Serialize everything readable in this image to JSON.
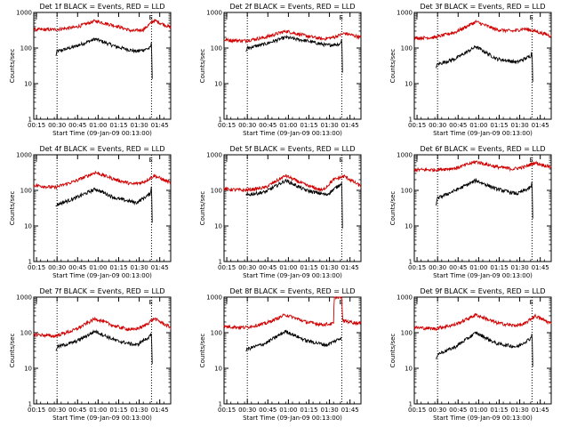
{
  "chart_data": [
    {
      "type": "line",
      "title": "Det 1f BLACK = Events, RED = LLD",
      "xlabel": "Start Time (09-Jan-09 00:13:00)",
      "ylabel": "Counts/sec",
      "y_scale": "log",
      "ylim": [
        1,
        1000
      ],
      "x_ticks": [
        "00:15",
        "00:30",
        "00:45",
        "01:00",
        "01:15",
        "01:30",
        "01:45"
      ],
      "y_ticks": [
        "1",
        "10",
        "100",
        "1000"
      ],
      "x_range_minutes": [
        0,
        100
      ],
      "markers": [
        {
          "label": "E",
          "x": 86
        }
      ],
      "dotted_lines_x": [
        17,
        86
      ],
      "series": [
        {
          "name": "Events",
          "color": "#000000",
          "points": [
            [
              16,
              60
            ],
            [
              17,
              80
            ],
            [
              30,
              110
            ],
            [
              45,
              180
            ],
            [
              60,
              110
            ],
            [
              75,
              80
            ],
            [
              85,
              100
            ],
            [
              86,
              140
            ],
            [
              86.5,
              15
            ]
          ]
        },
        {
          "name": "LLD",
          "color": "#d00000",
          "points": [
            [
              0,
              330
            ],
            [
              15,
              330
            ],
            [
              30,
              380
            ],
            [
              45,
              580
            ],
            [
              60,
              420
            ],
            [
              72,
              300
            ],
            [
              80,
              330
            ],
            [
              88,
              600
            ],
            [
              100,
              380
            ]
          ]
        }
      ]
    },
    {
      "type": "line",
      "title": "Det 2f BLACK = Events, RED = LLD",
      "xlabel": "Start Time (09-Jan-09 00:13:00)",
      "ylabel": "Counts/sec",
      "y_scale": "log",
      "ylim": [
        1,
        1000
      ],
      "x_ticks": [
        "00:15",
        "00:30",
        "00:45",
        "01:00",
        "01:15",
        "01:30",
        "01:45"
      ],
      "y_ticks": [
        "1",
        "10",
        "100",
        "1000"
      ],
      "x_range_minutes": [
        0,
        100
      ],
      "markers": [
        {
          "label": "E",
          "x": 86
        }
      ],
      "dotted_lines_x": [
        17,
        86
      ],
      "series": [
        {
          "name": "Events",
          "color": "#000000",
          "points": [
            [
              16,
              80
            ],
            [
              17,
              100
            ],
            [
              30,
              130
            ],
            [
              45,
              200
            ],
            [
              60,
              160
            ],
            [
              75,
              120
            ],
            [
              85,
              130
            ],
            [
              86,
              200
            ],
            [
              86.5,
              20
            ]
          ]
        },
        {
          "name": "LLD",
          "color": "#d00000",
          "points": [
            [
              0,
              170
            ],
            [
              15,
              160
            ],
            [
              30,
              200
            ],
            [
              45,
              300
            ],
            [
              60,
              220
            ],
            [
              72,
              180
            ],
            [
              80,
              200
            ],
            [
              88,
              260
            ],
            [
              100,
              200
            ]
          ]
        }
      ]
    },
    {
      "type": "line",
      "title": "Det 3f BLACK = Events, RED = LLD",
      "xlabel": "Start Time (09-Jan-09 00:13:00)",
      "ylabel": "Counts/sec",
      "y_scale": "log",
      "ylim": [
        1,
        1000
      ],
      "x_ticks": [
        "00:15",
        "00:30",
        "00:45",
        "01:00",
        "01:15",
        "01:30",
        "01:45"
      ],
      "y_ticks": [
        "1",
        "10",
        "100",
        "1000"
      ],
      "x_range_minutes": [
        0,
        100
      ],
      "markers": [
        {
          "label": "E",
          "x": 86
        }
      ],
      "dotted_lines_x": [
        17,
        86
      ],
      "series": [
        {
          "name": "Events",
          "color": "#000000",
          "points": [
            [
              16,
              30
            ],
            [
              17,
              35
            ],
            [
              30,
              50
            ],
            [
              45,
              110
            ],
            [
              60,
              50
            ],
            [
              75,
              40
            ],
            [
              85,
              60
            ],
            [
              86,
              80
            ],
            [
              86.5,
              12
            ]
          ]
        },
        {
          "name": "LLD",
          "color": "#d00000",
          "points": [
            [
              0,
              190
            ],
            [
              15,
              200
            ],
            [
              30,
              280
            ],
            [
              45,
              550
            ],
            [
              60,
              330
            ],
            [
              72,
              300
            ],
            [
              80,
              350
            ],
            [
              88,
              300
            ],
            [
              100,
              220
            ]
          ]
        }
      ]
    },
    {
      "type": "line",
      "title": "Det 4f BLACK = Events, RED = LLD",
      "xlabel": "Start Time (09-Jan-09 00:13:00)",
      "ylabel": "Counts/sec",
      "y_scale": "log",
      "ylim": [
        1,
        1000
      ],
      "x_ticks": [
        "00:15",
        "00:30",
        "00:45",
        "01:00",
        "01:15",
        "01:30",
        "01:45"
      ],
      "y_ticks": [
        "1",
        "10",
        "100",
        "1000"
      ],
      "x_range_minutes": [
        0,
        100
      ],
      "markers": [
        {
          "label": "E",
          "x": 86
        }
      ],
      "dotted_lines_x": [
        17,
        86
      ],
      "series": [
        {
          "name": "Events",
          "color": "#000000",
          "points": [
            [
              16,
              35
            ],
            [
              17,
              40
            ],
            [
              30,
              60
            ],
            [
              45,
              110
            ],
            [
              60,
              60
            ],
            [
              75,
              45
            ],
            [
              85,
              80
            ],
            [
              86,
              140
            ],
            [
              86.5,
              12
            ]
          ]
        },
        {
          "name": "LLD",
          "color": "#d00000",
          "points": [
            [
              0,
              140
            ],
            [
              15,
              120
            ],
            [
              30,
              180
            ],
            [
              45,
              320
            ],
            [
              60,
              200
            ],
            [
              72,
              150
            ],
            [
              80,
              170
            ],
            [
              88,
              260
            ],
            [
              100,
              160
            ]
          ]
        }
      ]
    },
    {
      "type": "line",
      "title": "Det 5f BLACK = Events, RED = LLD",
      "xlabel": "Start Time (09-Jan-09 00:13:00)",
      "ylabel": "Counts/sec",
      "y_scale": "log",
      "ylim": [
        1,
        1000
      ],
      "x_ticks": [
        "00:15",
        "00:30",
        "00:45",
        "01:00",
        "01:15",
        "01:30",
        "01:45"
      ],
      "y_ticks": [
        "1",
        "10",
        "100",
        "1000"
      ],
      "x_range_minutes": [
        0,
        100
      ],
      "markers": [
        {
          "label": "E",
          "x": 86
        }
      ],
      "dotted_lines_x": [
        17,
        86
      ],
      "series": [
        {
          "name": "Events",
          "color": "#000000",
          "points": [
            [
              16,
              70
            ],
            [
              17,
              75
            ],
            [
              30,
              90
            ],
            [
              45,
              190
            ],
            [
              60,
              100
            ],
            [
              75,
              75
            ],
            [
              85,
              150
            ],
            [
              86,
              180
            ],
            [
              86.5,
              8
            ]
          ]
        },
        {
          "name": "LLD",
          "color": "#d00000",
          "points": [
            [
              0,
              110
            ],
            [
              15,
              100
            ],
            [
              30,
              120
            ],
            [
              45,
              260
            ],
            [
              60,
              140
            ],
            [
              72,
              100
            ],
            [
              80,
              200
            ],
            [
              88,
              250
            ],
            [
              100,
              130
            ]
          ]
        }
      ]
    },
    {
      "type": "line",
      "title": "Det 6f BLACK = Events, RED = LLD",
      "xlabel": "Start Time (09-Jan-09 00:13:00)",
      "ylabel": "Counts/sec",
      "y_scale": "log",
      "ylim": [
        1,
        1000
      ],
      "x_ticks": [
        "00:15",
        "00:30",
        "00:45",
        "01:00",
        "01:15",
        "01:30",
        "01:45"
      ],
      "y_ticks": [
        "1",
        "10",
        "100",
        "1000"
      ],
      "x_range_minutes": [
        0,
        100
      ],
      "markers": [
        {
          "label": "E",
          "x": 86
        }
      ],
      "dotted_lines_x": [
        17,
        86
      ],
      "series": [
        {
          "name": "Events",
          "color": "#000000",
          "points": [
            [
              16,
              40
            ],
            [
              17,
              60
            ],
            [
              30,
              100
            ],
            [
              45,
              190
            ],
            [
              60,
              110
            ],
            [
              75,
              80
            ],
            [
              85,
              120
            ],
            [
              86,
              170
            ],
            [
              86.5,
              15
            ]
          ]
        },
        {
          "name": "LLD",
          "color": "#d00000",
          "points": [
            [
              0,
              380
            ],
            [
              15,
              380
            ],
            [
              30,
              420
            ],
            [
              45,
              640
            ],
            [
              60,
              460
            ],
            [
              72,
              400
            ],
            [
              80,
              450
            ],
            [
              88,
              600
            ],
            [
              100,
              450
            ]
          ]
        }
      ]
    },
    {
      "type": "line",
      "title": "Det 7f BLACK = Events, RED = LLD",
      "xlabel": "Start Time (09-Jan-09 00:13:00)",
      "ylabel": "Counts/sec",
      "y_scale": "log",
      "ylim": [
        1,
        1000
      ],
      "x_ticks": [
        "00:15",
        "00:30",
        "00:45",
        "01:00",
        "01:15",
        "01:30",
        "01:45"
      ],
      "y_ticks": [
        "1",
        "10",
        "100",
        "1000"
      ],
      "x_range_minutes": [
        0,
        100
      ],
      "markers": [
        {
          "label": "E",
          "x": 86
        }
      ],
      "dotted_lines_x": [
        17,
        86
      ],
      "series": [
        {
          "name": "Events",
          "color": "#000000",
          "points": [
            [
              16,
              30
            ],
            [
              17,
              40
            ],
            [
              30,
              55
            ],
            [
              45,
              110
            ],
            [
              60,
              60
            ],
            [
              75,
              45
            ],
            [
              85,
              80
            ],
            [
              86,
              90
            ],
            [
              86.5,
              12
            ]
          ]
        },
        {
          "name": "LLD",
          "color": "#d00000",
          "points": [
            [
              0,
              90
            ],
            [
              15,
              80
            ],
            [
              30,
              120
            ],
            [
              45,
              250
            ],
            [
              60,
              150
            ],
            [
              72,
              120
            ],
            [
              80,
              150
            ],
            [
              88,
              250
            ],
            [
              100,
              140
            ]
          ]
        }
      ]
    },
    {
      "type": "line",
      "title": "Det 8f BLACK = Events, RED = LLD",
      "xlabel": "Start Time (09-Jan-09 00:13:00)",
      "ylabel": "Counts/sec",
      "y_scale": "log",
      "ylim": [
        1,
        1000
      ],
      "x_ticks": [
        "00:15",
        "00:30",
        "00:45",
        "01:00",
        "01:15",
        "01:30",
        "01:45"
      ],
      "y_ticks": [
        "1",
        "10",
        "100",
        "1000"
      ],
      "x_range_minutes": [
        0,
        100
      ],
      "markers": [
        {
          "label": "E",
          "x": 86
        }
      ],
      "dotted_lines_x": [
        17,
        86
      ],
      "series": [
        {
          "name": "Events",
          "color": "#000000",
          "points": [
            [
              16,
              30
            ],
            [
              17,
              35
            ],
            [
              30,
              50
            ],
            [
              45,
              110
            ],
            [
              60,
              60
            ],
            [
              75,
              45
            ],
            [
              85,
              70
            ],
            [
              86,
              80
            ]
          ]
        },
        {
          "name": "LLD",
          "color": "#d00000",
          "points": [
            [
              0,
              150
            ],
            [
              15,
              140
            ],
            [
              30,
              180
            ],
            [
              45,
              320
            ],
            [
              60,
              200
            ],
            [
              72,
              170
            ],
            [
              80,
              180
            ],
            [
              80.5,
              1000
            ],
            [
              86,
              1000
            ],
            [
              86.5,
              220
            ],
            [
              100,
              180
            ]
          ]
        }
      ]
    },
    {
      "type": "line",
      "title": "Det 9f BLACK = Events, RED = LLD",
      "xlabel": "Start Time (09-Jan-09 00:13:00)",
      "ylabel": "Counts/sec",
      "y_scale": "log",
      "ylim": [
        1,
        1000
      ],
      "x_ticks": [
        "00:15",
        "00:30",
        "00:45",
        "01:00",
        "01:15",
        "01:30",
        "01:45"
      ],
      "y_ticks": [
        "1",
        "10",
        "100",
        "1000"
      ],
      "x_range_minutes": [
        0,
        100
      ],
      "markers": [
        {
          "label": "E",
          "x": 86
        }
      ],
      "dotted_lines_x": [
        17,
        86
      ],
      "series": [
        {
          "name": "Events",
          "color": "#000000",
          "points": [
            [
              16,
              20
            ],
            [
              17,
              25
            ],
            [
              30,
              40
            ],
            [
              45,
              100
            ],
            [
              60,
              50
            ],
            [
              75,
              40
            ],
            [
              85,
              70
            ],
            [
              86,
              100
            ],
            [
              86.5,
              12
            ]
          ]
        },
        {
          "name": "LLD",
          "color": "#d00000",
          "points": [
            [
              0,
              140
            ],
            [
              15,
              130
            ],
            [
              30,
              170
            ],
            [
              45,
              320
            ],
            [
              60,
              190
            ],
            [
              72,
              160
            ],
            [
              80,
              170
            ],
            [
              88,
              300
            ],
            [
              100,
              180
            ]
          ]
        }
      ]
    }
  ]
}
